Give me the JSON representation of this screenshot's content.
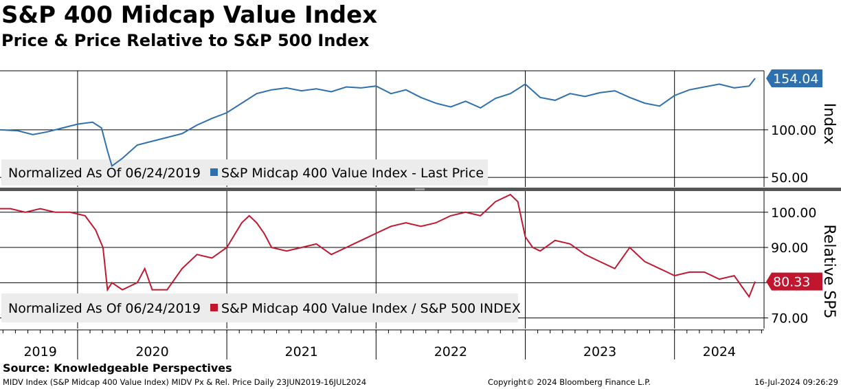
{
  "header": {
    "title": "S&P 400 Midcap Value Index",
    "subtitle": "Price & Price Relative to S&P 500 Index"
  },
  "footer": {
    "source": "Source: Knowledgeable Perspectives",
    "ticker_line": "MIDV Index (S&P Midcap 400 Value Index) MIDV Px & Rel. Price  Daily 23JUN2019-16JUL2024",
    "copyright": "Copyright© 2024 Bloomberg Finance L.P.",
    "timestamp": "16-Jul-2024 09:26:29"
  },
  "colors": {
    "price": "#2e6fae",
    "relative": "#c0172f",
    "grid": "#000000",
    "legend_bg": "#ececec"
  },
  "chart_data": [
    {
      "type": "line",
      "panel": "top",
      "legend_prefix": "Normalized As Of 06/24/2019",
      "series": [
        {
          "name": "S&P Midcap 400 Value Index - Last Price",
          "x": [
            2019.48,
            2019.6,
            2019.7,
            2019.8,
            2019.9,
            2020.0,
            2020.1,
            2020.16,
            2020.2,
            2020.23,
            2020.3,
            2020.4,
            2020.5,
            2020.6,
            2020.7,
            2020.8,
            2020.9,
            2021.0,
            2021.1,
            2021.2,
            2021.3,
            2021.4,
            2021.5,
            2021.6,
            2021.7,
            2021.8,
            2021.9,
            2022.0,
            2022.1,
            2022.2,
            2022.3,
            2022.4,
            2022.5,
            2022.6,
            2022.7,
            2022.8,
            2022.9,
            2023.0,
            2023.1,
            2023.2,
            2023.3,
            2023.4,
            2023.5,
            2023.6,
            2023.7,
            2023.8,
            2023.9,
            2024.0,
            2024.1,
            2024.2,
            2024.3,
            2024.4,
            2024.5,
            2024.54
          ],
          "y": [
            100,
            99,
            95,
            98,
            102,
            106,
            108,
            102,
            78,
            62,
            70,
            84,
            88,
            92,
            96,
            105,
            112,
            118,
            128,
            138,
            142,
            144,
            141,
            143,
            140,
            145,
            144,
            146,
            138,
            142,
            134,
            128,
            124,
            130,
            123,
            133,
            138,
            148,
            134,
            131,
            138,
            135,
            139,
            141,
            134,
            128,
            125,
            136,
            142,
            145,
            148,
            144,
            146,
            154.04
          ]
        }
      ],
      "last_value_label": "154.04",
      "yticks": [
        "100.00",
        "50.00"
      ],
      "ylim": [
        40,
        162
      ],
      "axis_title": "Index"
    },
    {
      "type": "line",
      "panel": "bottom",
      "legend_prefix": "Normalized As Of 06/24/2019",
      "series": [
        {
          "name": "S&P Midcap 400 Value Index / S&P 500 INDEX",
          "x": [
            2019.48,
            2019.55,
            2019.65,
            2019.75,
            2019.85,
            2019.95,
            2020.05,
            2020.12,
            2020.17,
            2020.2,
            2020.23,
            2020.3,
            2020.4,
            2020.45,
            2020.5,
            2020.6,
            2020.7,
            2020.8,
            2020.9,
            2021.0,
            2021.1,
            2021.15,
            2021.2,
            2021.25,
            2021.3,
            2021.4,
            2021.5,
            2021.6,
            2021.7,
            2021.8,
            2021.9,
            2022.0,
            2022.1,
            2022.2,
            2022.3,
            2022.4,
            2022.5,
            2022.6,
            2022.7,
            2022.8,
            2022.9,
            2022.95,
            2023.0,
            2023.05,
            2023.1,
            2023.2,
            2023.3,
            2023.4,
            2023.5,
            2023.6,
            2023.7,
            2023.8,
            2023.9,
            2023.95,
            2024.0,
            2024.1,
            2024.2,
            2024.3,
            2024.4,
            2024.45,
            2024.5,
            2024.54
          ],
          "y": [
            101,
            101,
            100,
            101,
            100,
            100,
            99,
            95,
            90,
            78,
            80,
            78,
            80,
            84,
            78,
            78,
            84,
            88,
            87,
            90,
            97,
            99,
            97,
            94,
            90,
            89,
            90,
            91,
            88,
            90,
            92,
            94,
            96,
            97,
            96,
            97,
            99,
            100,
            99,
            103,
            105,
            103,
            93,
            90,
            89,
            92,
            91,
            88,
            86,
            84,
            90,
            86,
            84,
            83,
            82,
            83,
            83,
            81,
            82,
            79,
            76,
            80.33
          ]
        }
      ],
      "last_value_label": "80.33",
      "yticks": [
        "100.00",
        "90.00",
        "80.00",
        "70.00"
      ],
      "ylim": [
        67,
        106
      ],
      "axis_title": "Relative SP5"
    }
  ],
  "x_axis": {
    "labels": [
      "2019",
      "2020",
      "2021",
      "2022",
      "2023",
      "2024"
    ],
    "label_positions": [
      2019.75,
      2020.5,
      2021.5,
      2022.5,
      2023.5,
      2024.3
    ],
    "year_boundaries": [
      2020,
      2021,
      2022,
      2023,
      2024
    ],
    "xlim": [
      2019.48,
      2024.6
    ]
  }
}
